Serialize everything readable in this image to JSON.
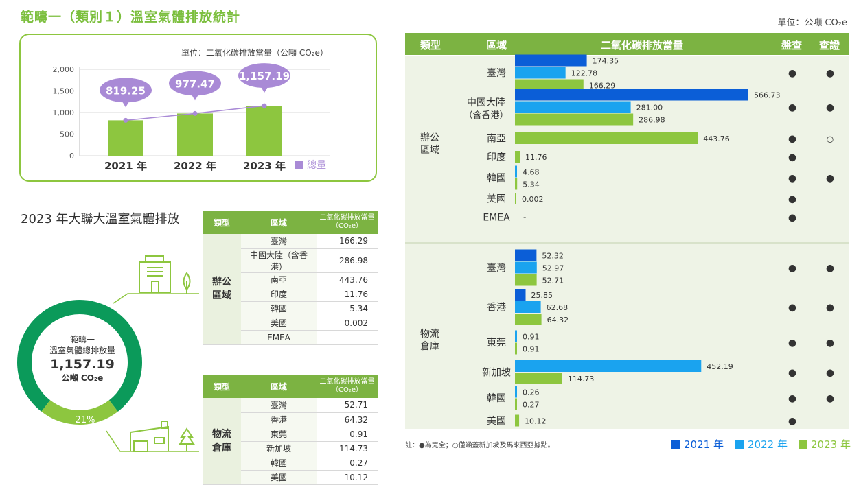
{
  "page": {
    "title": "範疇一（類別１）溫室氣體排放統計",
    "unit_top": "單位：公噸 CO₂e"
  },
  "trend": {
    "unit": "單位：二氧化碳排放當量（公噸 CO₂e）",
    "legend": "總量",
    "colors": {
      "bar": "#8dc63f",
      "bubble": "#a98ad6",
      "line": "#a98ad6"
    }
  },
  "donut": {
    "title": "2023 年大聯大溫室氣體排放",
    "center_line1": "範疇一",
    "center_line2": "溫室氣體總排放量",
    "center_value": "1,157.19",
    "center_unit": "公噸 CO₂e",
    "segments": [
      {
        "label": "79%",
        "value": 79,
        "color": "#0b9a5a"
      },
      {
        "label": "21%",
        "value": 21,
        "color": "#8dc63f"
      }
    ]
  },
  "office_table": {
    "headers": [
      "類型",
      "區域",
      "二氧化碳排放當量（CO₂e）"
    ],
    "type": "辦公區域",
    "rows": [
      {
        "region": "臺灣",
        "value": "166.29"
      },
      {
        "region": "中國大陸（含香港）",
        "value": "286.98"
      },
      {
        "region": "南亞",
        "value": "443.76"
      },
      {
        "region": "印度",
        "value": "11.76"
      },
      {
        "region": "韓國",
        "value": "5.34"
      },
      {
        "region": "美國",
        "value": "0.002"
      },
      {
        "region": "EMEA",
        "value": "-"
      }
    ]
  },
  "logistics_table": {
    "headers": [
      "類型",
      "區域",
      "二氧化碳排放當量（CO₂e）"
    ],
    "type": "物流倉庫",
    "rows": [
      {
        "region": "臺灣",
        "value": "52.71"
      },
      {
        "region": "香港",
        "value": "64.32"
      },
      {
        "region": "東莞",
        "value": "0.91"
      },
      {
        "region": "新加坡",
        "value": "114.73"
      },
      {
        "region": "韓國",
        "value": "0.27"
      },
      {
        "region": "美國",
        "value": "10.12"
      }
    ]
  },
  "big_table": {
    "headers": {
      "type": "類型",
      "region": "區域",
      "emission": "二氧化碳排放當量",
      "inventory": "盤查",
      "verify": "查證"
    },
    "groups": [
      {
        "type": "辦公區域",
        "regions": [
          {
            "name": "臺灣",
            "values": [
              "174.35",
              "122.78",
              "166.29"
            ],
            "inventory": "●",
            "verify": "●"
          },
          {
            "name": "中國大陸（含香港）",
            "values": [
              "566.73",
              "281.00",
              "286.98"
            ],
            "inventory": "●",
            "verify": "●"
          },
          {
            "name": "南亞",
            "values": [
              "443.76"
            ],
            "inventory": "●",
            "verify": "○"
          },
          {
            "name": "印度",
            "values": [
              "11.76"
            ],
            "inventory": "●",
            "verify": ""
          },
          {
            "name": "韓國",
            "values": [
              "4.68",
              "5.34"
            ],
            "inventory": "●",
            "verify": "●"
          },
          {
            "name": "美國",
            "values": [
              "0.002"
            ],
            "inventory": "●",
            "verify": ""
          },
          {
            "name": "EMEA",
            "values": [
              "-"
            ],
            "inventory": "●",
            "verify": ""
          }
        ]
      },
      {
        "type": "物流倉庫",
        "regions": [
          {
            "name": "臺灣",
            "values": [
              "52.32",
              "52.97",
              "52.71"
            ],
            "inventory": "●",
            "verify": "●"
          },
          {
            "name": "香港",
            "values": [
              "25.85",
              "62.68",
              "64.32"
            ],
            "inventory": "●",
            "verify": "●"
          },
          {
            "name": "東莞",
            "values": [
              "0.91",
              "0.91"
            ],
            "inventory": "●",
            "verify": "●"
          },
          {
            "name": "新加坡",
            "values": [
              "452.19",
              "114.73"
            ],
            "inventory": "●",
            "verify": "●"
          },
          {
            "name": "韓國",
            "values": [
              "0.26",
              "0.27"
            ],
            "inventory": "●",
            "verify": "●"
          },
          {
            "name": "美國",
            "values": [
              "10.12"
            ],
            "inventory": "●",
            "verify": ""
          }
        ]
      }
    ],
    "note": "註：●為完全；○僅涵蓋新加坡及馬來西亞據點。",
    "legend": [
      {
        "label": "2021 年",
        "color": "#0b5ed7"
      },
      {
        "label": "2022 年",
        "color": "#1aa3ef"
      },
      {
        "label": "2023 年",
        "color": "#8dc63f"
      }
    ]
  },
  "chart_data": [
    {
      "type": "bar",
      "categories": [
        "2021 年",
        "2022 年",
        "2023 年"
      ],
      "series": [
        {
          "name": "總量",
          "values": [
            819.25,
            977.47,
            1157.19
          ]
        }
      ],
      "data_labels": [
        "819.25",
        "977.47",
        "1,157.19"
      ],
      "ylim": [
        0,
        2000
      ],
      "yticks": [
        "0",
        "500",
        "1,000",
        "1,500",
        "2,000"
      ],
      "grid": true,
      "legend": "bottom-right"
    },
    {
      "type": "pie",
      "categories": [
        "辦公區域",
        "物流倉庫"
      ],
      "values": [
        79,
        21
      ]
    },
    {
      "type": "bar",
      "orientation": "horizontal",
      "series_names": [
        "2021 年",
        "2022 年",
        "2023 年"
      ],
      "rows": [
        {
          "group": "辦公區域",
          "region": "臺灣",
          "values": [
            174.35,
            122.78,
            166.29
          ]
        },
        {
          "group": "辦公區域",
          "region": "中國大陸（含香港）",
          "values": [
            566.73,
            281.0,
            286.98
          ]
        },
        {
          "group": "辦公區域",
          "region": "南亞",
          "values": [
            null,
            null,
            443.76
          ]
        },
        {
          "group": "辦公區域",
          "region": "印度",
          "values": [
            null,
            null,
            11.76
          ]
        },
        {
          "group": "辦公區域",
          "region": "韓國",
          "values": [
            null,
            4.68,
            5.34
          ]
        },
        {
          "group": "辦公區域",
          "region": "美國",
          "values": [
            null,
            null,
            0.002
          ]
        },
        {
          "group": "辦公區域",
          "region": "EMEA",
          "values": [
            null,
            null,
            null
          ]
        },
        {
          "group": "物流倉庫",
          "region": "臺灣",
          "values": [
            52.32,
            52.97,
            52.71
          ]
        },
        {
          "group": "物流倉庫",
          "region": "香港",
          "values": [
            25.85,
            62.68,
            64.32
          ]
        },
        {
          "group": "物流倉庫",
          "region": "東莞",
          "values": [
            null,
            0.91,
            0.91
          ]
        },
        {
          "group": "物流倉庫",
          "region": "新加坡",
          "values": [
            null,
            452.19,
            114.73
          ]
        },
        {
          "group": "物流倉庫",
          "region": "韓國",
          "values": [
            null,
            0.26,
            0.27
          ]
        },
        {
          "group": "物流倉庫",
          "region": "美國",
          "values": [
            null,
            null,
            10.12
          ]
        }
      ],
      "legend": "bottom-right"
    }
  ]
}
